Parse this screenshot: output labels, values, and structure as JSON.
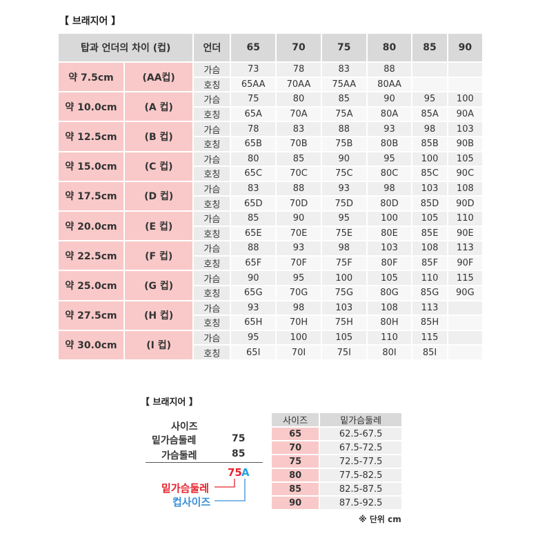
{
  "title": "【 브래지어 】",
  "main": {
    "headers": [
      "탑과 언더의 차이 (컵)",
      "언더",
      "65",
      "70",
      "75",
      "80",
      "85",
      "90"
    ],
    "row_labels": [
      "가슴",
      "호칭"
    ],
    "groups": [
      {
        "diff": "약 7.5cm",
        "cup": "(AA컵)",
        "chest": [
          "73",
          "78",
          "83",
          "88",
          "",
          ""
        ],
        "name": [
          "65AA",
          "70AA",
          "75AA",
          "80AA",
          "",
          ""
        ]
      },
      {
        "diff": "약 10.0cm",
        "cup": "(A 컵)",
        "chest": [
          "75",
          "80",
          "85",
          "90",
          "95",
          "100"
        ],
        "name": [
          "65A",
          "70A",
          "75A",
          "80A",
          "85A",
          "90A"
        ]
      },
      {
        "diff": "약 12.5cm",
        "cup": "(B 컵)",
        "chest": [
          "78",
          "83",
          "88",
          "93",
          "98",
          "103"
        ],
        "name": [
          "65B",
          "70B",
          "75B",
          "80B",
          "85B",
          "90B"
        ]
      },
      {
        "diff": "약 15.0cm",
        "cup": "(C 컵)",
        "chest": [
          "80",
          "85",
          "90",
          "95",
          "100",
          "105"
        ],
        "name": [
          "65C",
          "70C",
          "75C",
          "80C",
          "85C",
          "90C"
        ]
      },
      {
        "diff": "약 17.5cm",
        "cup": "(D 컵)",
        "chest": [
          "83",
          "88",
          "93",
          "98",
          "103",
          "108"
        ],
        "name": [
          "65D",
          "70D",
          "75D",
          "80D",
          "85D",
          "90D"
        ]
      },
      {
        "diff": "약 20.0cm",
        "cup": "(E 컵)",
        "chest": [
          "85",
          "90",
          "95",
          "100",
          "105",
          "110"
        ],
        "name": [
          "65E",
          "70E",
          "75E",
          "80E",
          "85E",
          "90E"
        ]
      },
      {
        "diff": "약 22.5cm",
        "cup": "(F 컵)",
        "chest": [
          "88",
          "93",
          "98",
          "103",
          "108",
          "113"
        ],
        "name": [
          "65F",
          "70F",
          "75F",
          "80F",
          "85F",
          "90F"
        ]
      },
      {
        "diff": "약 25.0cm",
        "cup": "(G 컵)",
        "chest": [
          "90",
          "95",
          "100",
          "105",
          "110",
          "115"
        ],
        "name": [
          "65G",
          "70G",
          "75G",
          "80G",
          "85G",
          "90G"
        ]
      },
      {
        "diff": "약 27.5cm",
        "cup": "(H 컵)",
        "chest": [
          "93",
          "98",
          "103",
          "108",
          "113",
          ""
        ],
        "name": [
          "65H",
          "70H",
          "75H",
          "80H",
          "85H",
          ""
        ]
      },
      {
        "diff": "약 30.0cm",
        "cup": "(I  컵)",
        "chest": [
          "95",
          "100",
          "105",
          "110",
          "115",
          ""
        ],
        "name": [
          "65I",
          "70I",
          "75I",
          "80I",
          "85I",
          ""
        ]
      }
    ]
  },
  "example": {
    "title": "【 브래지어 】",
    "size_label": "사이즈",
    "under_label": "밑가슴둘레",
    "under_value": "75",
    "chest_label": "가슴둘레",
    "chest_value": "85",
    "result_num": "75",
    "result_cup": "A",
    "legend_under": "밑가슴둘레",
    "legend_cup": "컵사이즈",
    "red": "#e8202a",
    "blue": "#3a8fd8"
  },
  "size_table": {
    "headers": [
      "사이즈",
      "밑가슴둘레"
    ],
    "rows": [
      [
        "65",
        "62.5-67.5"
      ],
      [
        "70",
        "67.5-72.5"
      ],
      [
        "75",
        "72.5-77.5"
      ],
      [
        "80",
        "77.5-82.5"
      ],
      [
        "85",
        "82.5-87.5"
      ],
      [
        "90",
        "87.5-92.5"
      ]
    ],
    "unit_note": "※ 단위 cm"
  }
}
